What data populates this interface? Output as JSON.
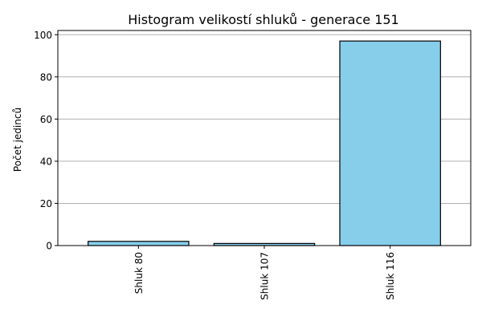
{
  "chart_data": {
    "type": "bar",
    "title": "Histogram velikostí shluků - generace 151",
    "xlabel": "",
    "ylabel": "Počet jedinců",
    "categories": [
      "Shluk 80",
      "Shluk 107",
      "Shluk 116"
    ],
    "values": [
      2,
      1,
      97
    ],
    "ylim": [
      0,
      102
    ],
    "yticks": [
      0,
      20,
      40,
      60,
      80,
      100
    ],
    "grid": "horizontal",
    "bar_color": "#87CEEB",
    "bar_edge_color": "#000000",
    "legend": "none"
  }
}
